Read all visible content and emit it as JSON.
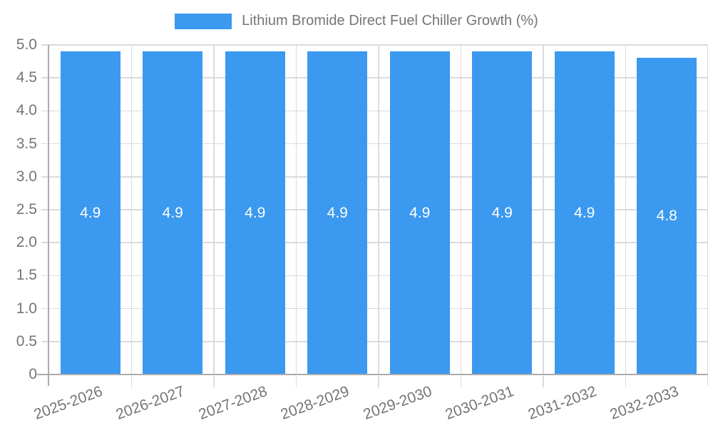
{
  "legend": {
    "label": "Lithium Bromide Direct Fuel Chiller Growth (%)"
  },
  "chart_data": {
    "type": "bar",
    "title": "",
    "xlabel": "",
    "ylabel": "",
    "legend_position": "top-center",
    "grid": "horizontal and vertical category separators",
    "categories": [
      "2025-2026",
      "2026-2027",
      "2027-2028",
      "2028-2029",
      "2029-2030",
      "2030-2031",
      "2031-2032",
      "2032-2033"
    ],
    "series": [
      {
        "name": "Lithium Bromide Direct Fuel Chiller Growth (%)",
        "values": [
          4.9,
          4.9,
          4.9,
          4.9,
          4.9,
          4.9,
          4.9,
          4.8
        ]
      }
    ],
    "value_labels": [
      "4.9",
      "4.9",
      "4.9",
      "4.9",
      "4.9",
      "4.9",
      "4.9",
      "4.8"
    ],
    "ylim": [
      0,
      5.0
    ],
    "y_ticks": [
      0,
      0.5,
      1.0,
      1.5,
      2.0,
      2.5,
      3.0,
      3.5,
      4.0,
      4.5,
      5.0
    ],
    "y_tick_labels": [
      "0",
      "0.5",
      "1.0",
      "1.5",
      "2.0",
      "2.5",
      "3.0",
      "3.5",
      "4.0",
      "4.5",
      "5.0"
    ],
    "x_label_rotation_deg": -20,
    "colors": {
      "bar": "#3B99EF",
      "bar_value_text": "#FFFFFF",
      "grid": "#DBDBDB",
      "axis": "#ABABAB",
      "tick_text": "#757575",
      "background": "#FFFFFF"
    }
  }
}
